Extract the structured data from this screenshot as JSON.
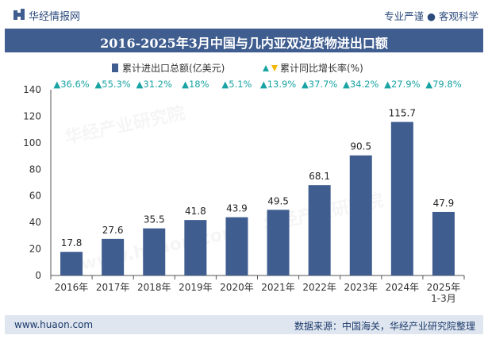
{
  "header": {
    "brand": "华经情报网",
    "tagline": "专业严谨 ● 客观科学",
    "logo_icon": "bar-logo-icon"
  },
  "chart_data": {
    "type": "bar",
    "title": "2016-2025年3月中国与几内亚双边货物进出口额",
    "categories": [
      "2016年",
      "2017年",
      "2018年",
      "2019年",
      "2020年",
      "2021年",
      "2022年",
      "2023年",
      "2024年",
      "2025年\n1-3月"
    ],
    "series": [
      {
        "name": "累计进出口总额(亿美元)",
        "values": [
          17.8,
          27.6,
          35.5,
          41.8,
          43.9,
          49.5,
          68.1,
          90.5,
          115.7,
          47.9
        ],
        "labels": [
          "17.8",
          "27.6",
          "35.5",
          "41.8",
          "43.9",
          "49.5",
          "68.1",
          "90.5",
          "115.7",
          "47.9"
        ],
        "color": "#3f5d8f"
      },
      {
        "name": "累计同比增长率(%)",
        "values": [
          36.6,
          55.3,
          31.2,
          18,
          5.1,
          13.9,
          37.7,
          34.2,
          27.9,
          79.8
        ],
        "labels": [
          "▲36.6%",
          "▲55.3%",
          "▲31.2%",
          "▲18%",
          "▲5.1%",
          "▲13.9%",
          "▲37.7%",
          "▲34.2%",
          "▲27.9%",
          "▲79.8%"
        ],
        "up_color": "#1aa3a3",
        "down_color": "#f2b705"
      }
    ],
    "y_ticks": [
      "0",
      "20",
      "40",
      "60",
      "80",
      "100",
      "120",
      "140"
    ],
    "ylim": [
      0,
      140
    ],
    "grid": false,
    "legend_position": "top-center"
  },
  "footer": {
    "website": "www.huaon.com",
    "source": "数据来源：中国海关，华经产业研究院整理"
  },
  "watermarks": [
    "华经产业研究院",
    "www.huaon.com"
  ]
}
